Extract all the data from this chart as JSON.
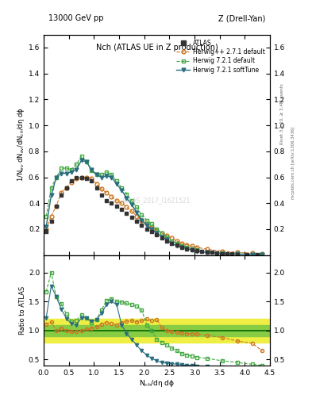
{
  "title_top": "13000 GeV pp",
  "title_right": "Z (Drell-Yan)",
  "plot_title": "Nch (ATLAS UE in Z production)",
  "ylabel_main": "1/N$_{ev}$ dN$_{ev}$/dN$_{ch}$/dη dϕ",
  "ylabel_ratio": "Ratio to ATLAS",
  "xlabel": "N$_{ch}$/dη dϕ",
  "right_label1": "Rivet 3.1.10, ≥ 3.4M events",
  "right_label2": "mcplots.cern.ch [arXiv:1306.3436]",
  "xlim": [
    0,
    4.5
  ],
  "ylim_main": [
    0,
    1.7
  ],
  "ylim_ratio": [
    0.4,
    2.3
  ],
  "atlas_x": [
    0.05,
    0.15,
    0.25,
    0.35,
    0.45,
    0.55,
    0.65,
    0.75,
    0.85,
    0.95,
    1.05,
    1.15,
    1.25,
    1.35,
    1.45,
    1.55,
    1.65,
    1.75,
    1.85,
    1.95,
    2.05,
    2.15,
    2.25,
    2.35,
    2.45,
    2.55,
    2.65,
    2.75,
    2.85,
    2.95,
    3.05,
    3.15,
    3.25,
    3.35,
    3.45,
    3.55,
    3.65,
    3.75,
    3.85,
    4.05,
    4.25
  ],
  "atlas_y": [
    0.18,
    0.26,
    0.38,
    0.46,
    0.52,
    0.57,
    0.6,
    0.6,
    0.59,
    0.57,
    0.52,
    0.46,
    0.42,
    0.4,
    0.38,
    0.35,
    0.32,
    0.29,
    0.26,
    0.23,
    0.2,
    0.18,
    0.16,
    0.13,
    0.11,
    0.09,
    0.08,
    0.06,
    0.05,
    0.04,
    0.035,
    0.03,
    0.025,
    0.02,
    0.015,
    0.012,
    0.01,
    0.008,
    0.006,
    0.004,
    0.002
  ],
  "herwig271_x": [
    0.05,
    0.15,
    0.25,
    0.35,
    0.45,
    0.55,
    0.65,
    0.75,
    0.85,
    0.95,
    1.05,
    1.15,
    1.25,
    1.35,
    1.45,
    1.55,
    1.65,
    1.75,
    1.85,
    1.95,
    2.05,
    2.15,
    2.25,
    2.35,
    2.45,
    2.55,
    2.65,
    2.75,
    2.85,
    2.95,
    3.05,
    3.25,
    3.55,
    3.85,
    4.15,
    4.35
  ],
  "herwig271_y": [
    0.2,
    0.3,
    0.38,
    0.48,
    0.52,
    0.56,
    0.59,
    0.6,
    0.6,
    0.59,
    0.55,
    0.51,
    0.48,
    0.45,
    0.42,
    0.4,
    0.37,
    0.34,
    0.3,
    0.27,
    0.24,
    0.21,
    0.19,
    0.17,
    0.15,
    0.13,
    0.11,
    0.09,
    0.08,
    0.07,
    0.06,
    0.045,
    0.03,
    0.02,
    0.015,
    0.012
  ],
  "herwig721d_x": [
    0.05,
    0.15,
    0.25,
    0.35,
    0.45,
    0.55,
    0.65,
    0.75,
    0.85,
    0.95,
    1.05,
    1.15,
    1.25,
    1.35,
    1.45,
    1.55,
    1.65,
    1.75,
    1.85,
    1.95,
    2.05,
    2.15,
    2.25,
    2.35,
    2.45,
    2.55,
    2.65,
    2.75,
    2.85,
    2.95,
    3.05,
    3.25,
    3.55,
    3.85,
    4.15,
    4.35
  ],
  "herwig721d_y": [
    0.3,
    0.52,
    0.6,
    0.67,
    0.67,
    0.66,
    0.7,
    0.76,
    0.72,
    0.65,
    0.62,
    0.62,
    0.64,
    0.62,
    0.57,
    0.52,
    0.47,
    0.42,
    0.37,
    0.31,
    0.27,
    0.24,
    0.2,
    0.17,
    0.14,
    0.11,
    0.09,
    0.07,
    0.06,
    0.05,
    0.04,
    0.025,
    0.015,
    0.01,
    0.007,
    0.005
  ],
  "herwig721s_x": [
    0.05,
    0.15,
    0.25,
    0.35,
    0.45,
    0.55,
    0.65,
    0.75,
    0.85,
    0.95,
    1.05,
    1.15,
    1.25,
    1.35,
    1.45,
    1.55,
    1.65,
    1.75,
    1.85,
    1.95,
    2.05,
    2.15,
    2.25,
    2.35,
    2.45,
    2.55,
    2.65,
    2.75,
    2.85,
    2.95,
    3.05,
    3.25,
    3.55,
    3.85,
    4.15,
    4.35
  ],
  "herwig721s_y": [
    0.22,
    0.46,
    0.6,
    0.63,
    0.63,
    0.64,
    0.66,
    0.73,
    0.72,
    0.66,
    0.62,
    0.6,
    0.61,
    0.6,
    0.55,
    0.5,
    0.44,
    0.39,
    0.33,
    0.27,
    0.23,
    0.2,
    0.17,
    0.14,
    0.12,
    0.09,
    0.07,
    0.06,
    0.05,
    0.04,
    0.03,
    0.02,
    0.012,
    0.008,
    0.005,
    0.004
  ],
  "ratio_x": [
    0.05,
    0.15,
    0.25,
    0.35,
    0.45,
    0.55,
    0.65,
    0.75,
    0.85,
    0.95,
    1.05,
    1.15,
    1.25,
    1.35,
    1.45,
    1.55,
    1.65,
    1.75,
    1.85,
    1.95,
    2.05,
    2.15,
    2.25,
    2.35,
    2.45,
    2.55,
    2.65,
    2.75,
    2.85,
    2.95,
    3.05,
    3.25,
    3.55,
    3.85,
    4.15,
    4.35
  ],
  "ratio_herwig271_y": [
    1.11,
    1.15,
    1.0,
    1.04,
    1.0,
    0.98,
    0.98,
    1.0,
    1.02,
    1.04,
    1.06,
    1.11,
    1.14,
    1.12,
    1.1,
    1.14,
    1.16,
    1.17,
    1.15,
    1.17,
    1.2,
    1.17,
    1.19,
    1.05,
    1.0,
    0.98,
    0.97,
    0.96,
    0.95,
    0.95,
    0.94,
    0.92,
    0.88,
    0.82,
    0.78,
    0.65
  ],
  "ratio_herwig721d_y": [
    1.67,
    2.0,
    1.58,
    1.46,
    1.29,
    1.16,
    1.17,
    1.27,
    1.22,
    1.14,
    1.19,
    1.35,
    1.52,
    1.55,
    1.5,
    1.49,
    1.47,
    1.45,
    1.42,
    1.35,
    1.1,
    1.0,
    0.85,
    0.8,
    0.75,
    0.7,
    0.65,
    0.6,
    0.58,
    0.56,
    0.54,
    0.52,
    0.48,
    0.45,
    0.42,
    0.4
  ],
  "ratio_herwig721s_y": [
    1.22,
    1.77,
    1.58,
    1.37,
    1.21,
    1.12,
    1.1,
    1.22,
    1.22,
    1.16,
    1.19,
    1.3,
    1.45,
    1.5,
    1.45,
    1.1,
    0.95,
    0.85,
    0.75,
    0.65,
    0.58,
    0.52,
    0.48,
    0.45,
    0.44,
    0.43,
    0.42,
    0.41,
    0.4,
    0.4,
    0.39,
    0.38,
    0.37,
    0.36,
    0.35,
    0.34
  ],
  "band_x_start": 0.0,
  "band_x_end": 4.5,
  "atlas_color": "#333333",
  "herwig271_color": "#cc7722",
  "herwig721d_color": "#44aa44",
  "herwig721s_color": "#2a6e80",
  "band_yellow": "#eeee44",
  "band_green": "#88cc44",
  "watermark": "ATLAS_2017_I1621521",
  "xticks": [
    0,
    1,
    2,
    3,
    4
  ],
  "yticks_main": [
    0.2,
    0.4,
    0.6,
    0.8,
    1.0,
    1.2,
    1.4,
    1.6
  ],
  "yticks_ratio": [
    0.5,
    1.0,
    1.5,
    2.0
  ]
}
